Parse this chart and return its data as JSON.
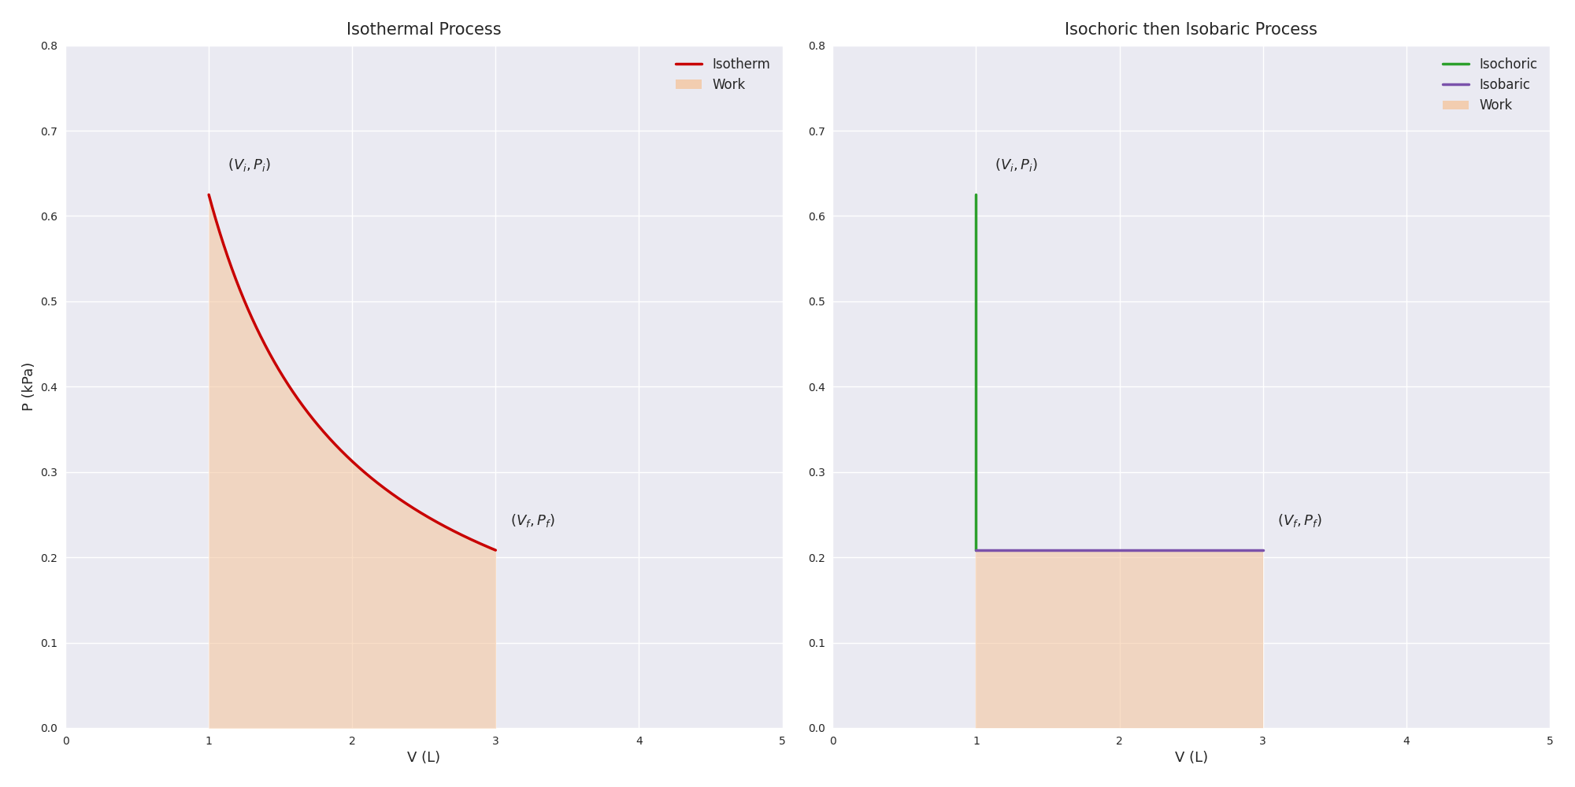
{
  "title_left": "Isothermal Process",
  "title_right": "Isochoric then Isobaric Process",
  "xlabel": "V (L)",
  "ylabel": "P (kPa)",
  "xlim": [
    0,
    5
  ],
  "ylim": [
    0,
    0.8
  ],
  "Vi": 1.0,
  "Vf": 3.0,
  "Pi": 0.625,
  "Pf": 0.20833333,
  "isotherm_color": "#c80000",
  "isochoric_color": "#2ca02c",
  "isobaric_color": "#7b52ab",
  "work_fill_color": "#f5c49a",
  "work_fill_alpha": 0.55,
  "background_color": "#e8eaf0",
  "legend_isotherm": "Isotherm",
  "legend_isochoric": "Isochoric",
  "legend_isobaric": "Isobaric",
  "legend_work": "Work",
  "yticks": [
    0.0,
    0.1,
    0.2,
    0.3,
    0.4,
    0.5,
    0.6,
    0.7,
    0.8
  ],
  "xticks": [
    0,
    1,
    2,
    3,
    4,
    5
  ],
  "figsize": [
    20.0,
    10.0
  ],
  "dpi": 100
}
